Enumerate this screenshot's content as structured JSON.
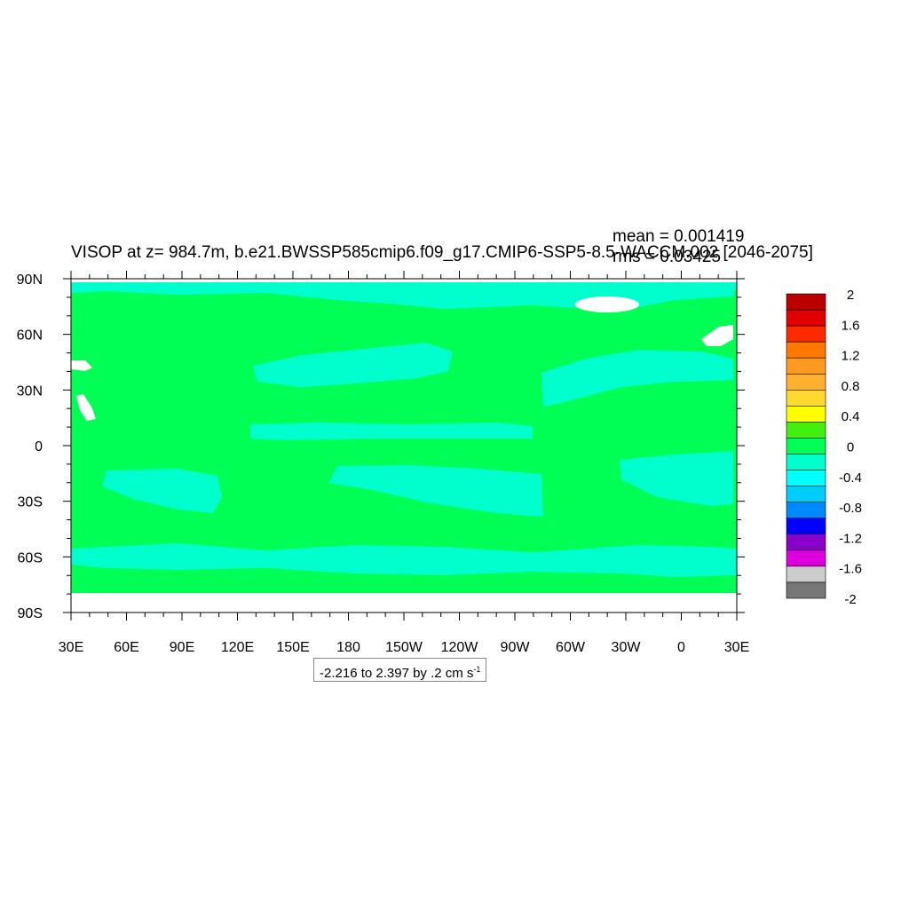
{
  "figure": {
    "title": "VISOP at z= 984.7m, b.e21.BWSSP585cmip6.f09_g17.CMIP6-SSP5-8.5-WACCM.002 [2046-2075]",
    "mean_label": "mean = 0.001419",
    "rms_label": "rms = 0.03425",
    "range_text": "-2.216 to 2.397 by .2 cm s",
    "range_unit_exponent": "-1"
  },
  "map": {
    "lon_labels": [
      "30E",
      "60E",
      "90E",
      "120E",
      "150E",
      "180",
      "150W",
      "120W",
      "90W",
      "60W",
      "30W",
      "0",
      "30E"
    ],
    "lat_labels": [
      "90N",
      "60N",
      "30N",
      "0",
      "30S",
      "60S",
      "90S"
    ],
    "ocean_color": "#00ff55",
    "negative_band_color": "#00ffcc",
    "missing_color": "#ffffff"
  },
  "colorbar": {
    "labels": [
      "2",
      "1.6",
      "1.2",
      "0.8",
      "0.4",
      "0",
      "-0.4",
      "-0.8",
      "-1.2",
      "-1.6",
      "-2"
    ],
    "colors": [
      "#bb0000",
      "#e00000",
      "#ff2a00",
      "#ff7800",
      "#ff9a20",
      "#ffb030",
      "#ffd830",
      "#ffff00",
      "#44ee11",
      "#00ff55",
      "#00ffcc",
      "#00ffff",
      "#00ccff",
      "#0088ff",
      "#0000ff",
      "#8800cc",
      "#dd00dd",
      "#cccccc",
      "#777777"
    ]
  }
}
